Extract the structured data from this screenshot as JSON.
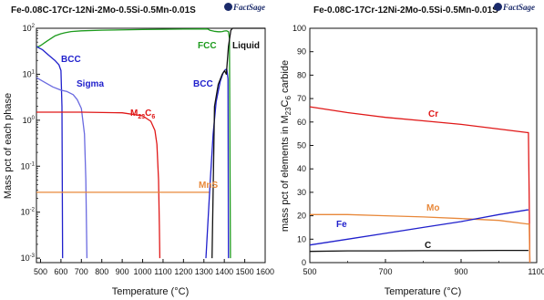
{
  "chart_data": [
    {
      "type": "line",
      "title": "Fe-0.08C-17Cr-12Ni-2Mo-0.5Si-0.5Mn-0.01S",
      "logo": "FactSage",
      "xlabel": "Temperature (°C)",
      "ylabel": "Mass pct of each phase",
      "xlim": [
        480,
        1600
      ],
      "ylim": [
        0.0008,
        100
      ],
      "yscale": "log",
      "xticks": [
        "500",
        "600",
        "700",
        "800",
        "900",
        "1000",
        "1100",
        "1200",
        "1300",
        "1400",
        "1500",
        "1600"
      ],
      "yticks": [
        {
          "value": 0.001,
          "base": "10",
          "exp": "-3"
        },
        {
          "value": 0.01,
          "base": "10",
          "exp": "-2"
        },
        {
          "value": 0.1,
          "base": "10",
          "exp": "-1"
        },
        {
          "value": 1,
          "base": "10",
          "exp": "0"
        },
        {
          "value": 10,
          "base": "10",
          "exp": "1"
        },
        {
          "value": 100,
          "base": "10",
          "exp": "2"
        }
      ],
      "series": [
        {
          "label": "FCC",
          "color": "#1c9a1c",
          "x": [
            480,
            500,
            530,
            570,
            600,
            620,
            650,
            700,
            800,
            1000,
            1200,
            1310,
            1320,
            1330,
            1350,
            1370,
            1380,
            1390,
            1400,
            1410,
            1420,
            1425,
            1430
          ],
          "y": [
            38,
            42,
            52,
            68,
            76,
            80,
            85,
            88,
            91,
            94,
            96,
            97,
            96,
            90,
            86,
            84,
            84,
            85,
            87,
            88,
            85,
            60,
            0.001
          ]
        },
        {
          "label": "BCC",
          "color": "#2020cc",
          "x": [
            480,
            510,
            540,
            570,
            590,
            600,
            605,
            608
          ],
          "y": [
            40,
            34,
            26,
            20,
            16,
            12,
            2,
            0.001
          ]
        },
        {
          "label": "Sigma",
          "color": "#6a6ae0",
          "x": [
            480,
            500,
            560,
            600,
            630,
            660,
            680,
            700,
            715,
            722,
            725,
            727
          ],
          "y": [
            8.5,
            7.5,
            5.3,
            4.5,
            4.2,
            3.6,
            2.8,
            1.8,
            0.5,
            0.05,
            0.005,
            0.001
          ]
        },
        {
          "label": "M23C6",
          "label_main": "M",
          "label_sub1": "23",
          "label_mid": "C",
          "label_sub2": "6",
          "color": "#e01818",
          "x": [
            480,
            700,
            900,
            1000,
            1040,
            1060,
            1070,
            1078,
            1082,
            1084
          ],
          "y": [
            1.5,
            1.5,
            1.45,
            1.25,
            0.95,
            0.6,
            0.3,
            0.05,
            0.005,
            0.001
          ]
        },
        {
          "label": "MnS",
          "color": "#e8883a",
          "x": [
            480,
            1000,
            1100,
            1200,
            1300,
            1325
          ],
          "y": [
            0.027,
            0.027,
            0.027,
            0.027,
            0.027,
            0.027
          ]
        },
        {
          "label": "BCC",
          "color": "#2020cc",
          "x": [
            1310,
            1330,
            1345,
            1360,
            1380,
            1395,
            1405,
            1412,
            1418,
            1420
          ],
          "y": [
            0.001,
            0.04,
            0.5,
            2.5,
            7,
            11,
            12.5,
            13,
            8,
            0.001
          ]
        },
        {
          "label": "Liquid",
          "color": "#111111",
          "x": [
            1340,
            1352,
            1370,
            1390,
            1402,
            1405,
            1410,
            1420,
            1432,
            1440,
            1600
          ],
          "y": [
            0.001,
            2,
            6,
            10,
            12,
            11,
            10,
            40,
            90,
            100,
            100
          ]
        }
      ],
      "annotations": [
        {
          "text": "BCC",
          "color": "#2020cc"
        },
        {
          "text": "Sigma",
          "color": "#2020cc"
        },
        {
          "text": "FCC",
          "color": "#1c9a1c"
        },
        {
          "text": "Liquid",
          "color": "#111111"
        },
        {
          "text": "MnS",
          "color": "#e8883a"
        },
        {
          "text": "BCC",
          "color": "#2020cc"
        }
      ]
    },
    {
      "type": "line",
      "title": "Fe-0.08C-17Cr-12Ni-2Mo-0.5Si-0.5Mn-0.01S",
      "logo": "FactSage",
      "xlabel": "Temperature (°C)",
      "ylabel_main": "mass pct of elements in M",
      "ylabel_sub1": "23",
      "ylabel_mid": "C",
      "ylabel_sub2": "6",
      "ylabel_end": " carbide",
      "xlim": [
        500,
        1100
      ],
      "ylim": [
        0,
        100
      ],
      "xticks": [
        "500",
        "700",
        "900",
        "1100"
      ],
      "yticks": [
        "0",
        "10",
        "20",
        "30",
        "40",
        "50",
        "60",
        "70",
        "80",
        "90",
        "100"
      ],
      "series": [
        {
          "label": "Cr",
          "color": "#e01818",
          "x": [
            500,
            600,
            700,
            800,
            900,
            1000,
            1075,
            1078,
            1080,
            1082
          ],
          "y": [
            66.5,
            64,
            62,
            60.5,
            59,
            57,
            55.5,
            55.5,
            30,
            0
          ]
        },
        {
          "label": "Mo",
          "color": "#e8883a",
          "x": [
            500,
            600,
            700,
            800,
            900,
            1000,
            1075,
            1080,
            1082
          ],
          "y": [
            20.5,
            20.5,
            20,
            19.5,
            18.8,
            18,
            16.5,
            16.5,
            0
          ]
        },
        {
          "label": "Fe",
          "color": "#2020cc",
          "x": [
            500,
            600,
            700,
            800,
            900,
            1000,
            1075,
            1078
          ],
          "y": [
            7.5,
            10,
            12.5,
            15,
            17.5,
            20.5,
            22.5,
            22.5
          ]
        },
        {
          "label": "C",
          "color": "#111111",
          "x": [
            500,
            600,
            700,
            800,
            900,
            1000,
            1075,
            1078
          ],
          "y": [
            4.8,
            5,
            5,
            5.1,
            5.1,
            5.2,
            5.2,
            5.2
          ]
        }
      ],
      "annotations": [
        {
          "text": "Cr",
          "color": "#e01818"
        },
        {
          "text": "Mo",
          "color": "#e8883a"
        },
        {
          "text": "Fe",
          "color": "#2020cc"
        },
        {
          "text": "C",
          "color": "#111111"
        }
      ]
    }
  ]
}
